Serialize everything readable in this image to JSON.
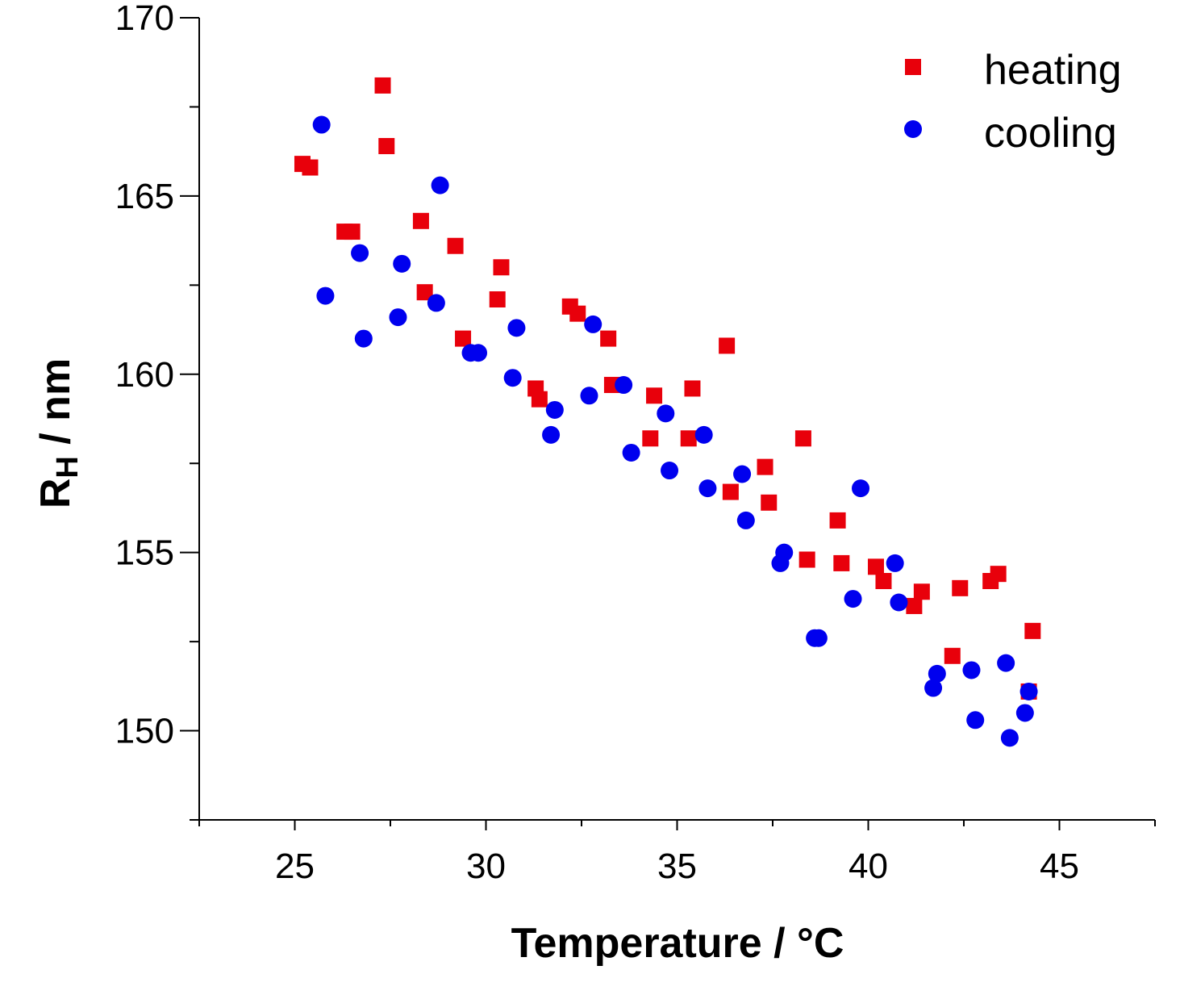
{
  "chart_data": {
    "type": "scatter",
    "title": "",
    "xlabel": "Temperature  / °C",
    "ylabel_main": "R",
    "ylabel_sub": "H",
    "ylabel_rest": " / nm",
    "xlim": [
      22.5,
      47.5
    ],
    "ylim": [
      147.5,
      170
    ],
    "xticks": [
      25,
      30,
      35,
      40,
      45
    ],
    "yticks": [
      150,
      155,
      160,
      165,
      170
    ],
    "grid": false,
    "legend_position": "top-right",
    "series": [
      {
        "name": "heating",
        "marker": "square",
        "color": "#e8000b",
        "points": [
          [
            25.2,
            165.9
          ],
          [
            25.4,
            165.8
          ],
          [
            26.3,
            164.0
          ],
          [
            26.5,
            164.0
          ],
          [
            27.3,
            168.1
          ],
          [
            27.4,
            166.4
          ],
          [
            28.3,
            164.3
          ],
          [
            28.4,
            162.3
          ],
          [
            29.2,
            163.6
          ],
          [
            29.4,
            161.0
          ],
          [
            30.3,
            162.1
          ],
          [
            30.4,
            163.0
          ],
          [
            31.3,
            159.6
          ],
          [
            31.4,
            159.3
          ],
          [
            32.2,
            161.9
          ],
          [
            32.4,
            161.7
          ],
          [
            33.2,
            161.0
          ],
          [
            33.3,
            159.7
          ],
          [
            34.3,
            158.2
          ],
          [
            34.4,
            159.4
          ],
          [
            35.3,
            158.2
          ],
          [
            35.4,
            159.6
          ],
          [
            36.3,
            160.8
          ],
          [
            36.4,
            156.7
          ],
          [
            37.3,
            157.4
          ],
          [
            37.4,
            156.4
          ],
          [
            38.3,
            158.2
          ],
          [
            38.4,
            154.8
          ],
          [
            39.2,
            155.9
          ],
          [
            39.3,
            154.7
          ],
          [
            40.2,
            154.6
          ],
          [
            40.4,
            154.2
          ],
          [
            41.2,
            153.5
          ],
          [
            41.4,
            153.9
          ],
          [
            42.2,
            152.1
          ],
          [
            42.4,
            154.0
          ],
          [
            43.2,
            154.2
          ],
          [
            43.4,
            154.4
          ],
          [
            44.2,
            151.1
          ],
          [
            44.3,
            152.8
          ]
        ]
      },
      {
        "name": "cooling",
        "marker": "circle",
        "color": "#0000ee",
        "points": [
          [
            25.7,
            167.0
          ],
          [
            25.8,
            162.2
          ],
          [
            26.7,
            163.4
          ],
          [
            26.8,
            161.0
          ],
          [
            27.7,
            161.6
          ],
          [
            27.8,
            163.1
          ],
          [
            28.7,
            162.0
          ],
          [
            28.8,
            165.3
          ],
          [
            29.6,
            160.6
          ],
          [
            29.8,
            160.6
          ],
          [
            30.7,
            159.9
          ],
          [
            30.8,
            161.3
          ],
          [
            31.7,
            158.3
          ],
          [
            31.8,
            159.0
          ],
          [
            32.7,
            159.4
          ],
          [
            32.8,
            161.4
          ],
          [
            33.6,
            159.7
          ],
          [
            33.8,
            157.8
          ],
          [
            34.7,
            158.9
          ],
          [
            34.8,
            157.3
          ],
          [
            35.7,
            158.3
          ],
          [
            35.8,
            156.8
          ],
          [
            36.7,
            157.2
          ],
          [
            36.8,
            155.9
          ],
          [
            37.7,
            154.7
          ],
          [
            37.8,
            155.0
          ],
          [
            38.6,
            152.6
          ],
          [
            38.7,
            152.6
          ],
          [
            39.6,
            153.7
          ],
          [
            39.8,
            156.8
          ],
          [
            40.7,
            154.7
          ],
          [
            40.8,
            153.6
          ],
          [
            41.7,
            151.2
          ],
          [
            41.8,
            151.6
          ],
          [
            42.7,
            151.7
          ],
          [
            42.8,
            150.3
          ],
          [
            43.6,
            151.9
          ],
          [
            43.7,
            149.8
          ],
          [
            44.1,
            150.5
          ],
          [
            44.2,
            151.1
          ]
        ]
      }
    ]
  }
}
